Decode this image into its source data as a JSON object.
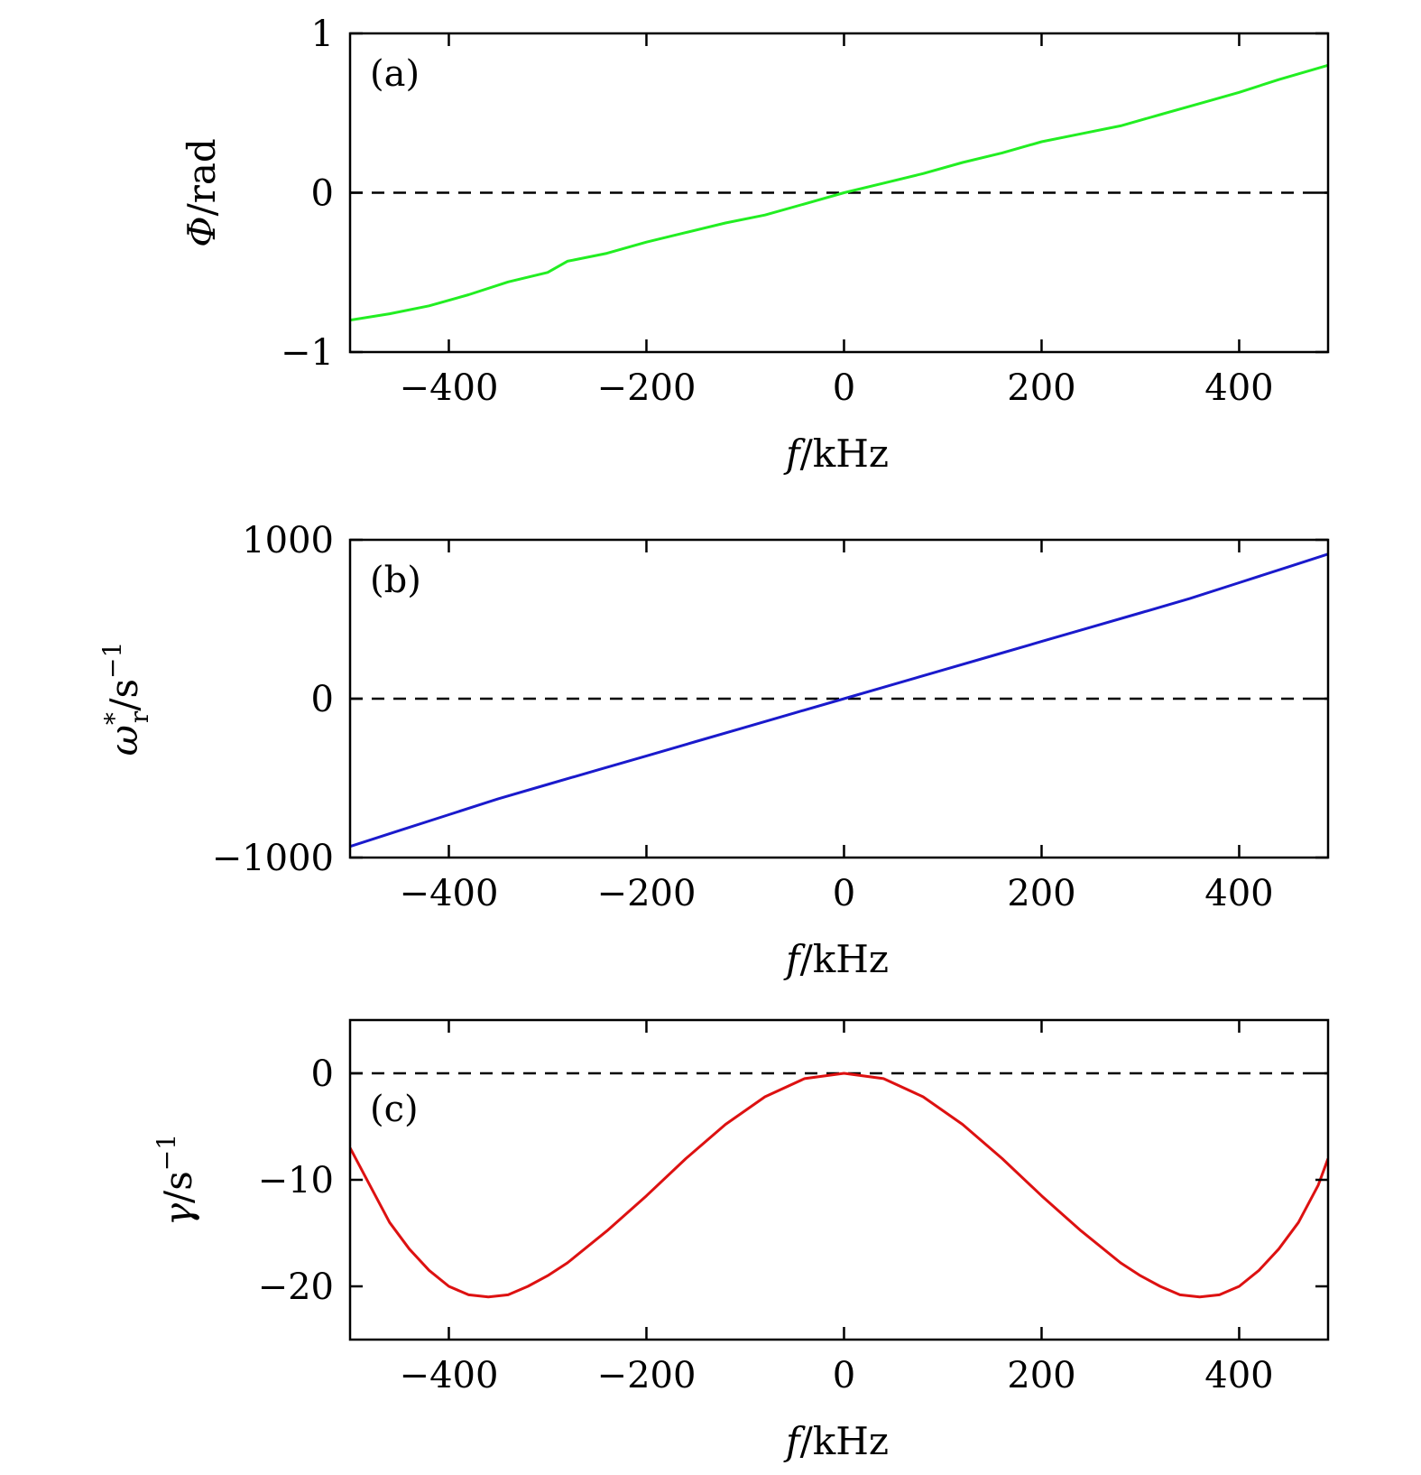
{
  "chart_data": [
    {
      "panel_label": "(a)",
      "type": "line",
      "xlabel": {
        "var": "f",
        "unit": "/kHz"
      },
      "ylabel": {
        "var": "Φ",
        "unit": "/rad"
      },
      "xlim": [
        -500,
        490
      ],
      "ylim": [
        -1,
        1
      ],
      "xticks": [
        -400,
        -200,
        0,
        200,
        400
      ],
      "xtick_labels": [
        "−400",
        "−200",
        "0",
        "200",
        "400"
      ],
      "yticks": [
        -1,
        0,
        1
      ],
      "ytick_labels": [
        "−1",
        "0",
        "1"
      ],
      "zero_line": 0,
      "series": [
        {
          "name": "Phi",
          "color": "#22ee22",
          "x": [
            -500,
            -460,
            -420,
            -380,
            -340,
            -300,
            -280,
            -240,
            -200,
            -160,
            -120,
            -80,
            -40,
            0,
            40,
            80,
            120,
            160,
            200,
            240,
            280,
            320,
            360,
            400,
            440,
            490
          ],
          "y": [
            -0.8,
            -0.76,
            -0.71,
            -0.64,
            -0.56,
            -0.5,
            -0.43,
            -0.38,
            -0.31,
            -0.25,
            -0.19,
            -0.14,
            -0.07,
            0.0,
            0.06,
            0.12,
            0.19,
            0.25,
            0.32,
            0.37,
            0.42,
            0.49,
            0.56,
            0.63,
            0.71,
            0.8
          ]
        }
      ]
    },
    {
      "panel_label": "(b)",
      "type": "line",
      "xlabel": {
        "var": "f",
        "unit": "/kHz"
      },
      "ylabel": {
        "var": "ω",
        "sub": "r",
        "sup": "*",
        "unit": "/s",
        "unit_sup": "−1"
      },
      "xlim": [
        -500,
        490
      ],
      "ylim": [
        -1000,
        1000
      ],
      "xticks": [
        -400,
        -200,
        0,
        200,
        400
      ],
      "xtick_labels": [
        "−400",
        "−200",
        "0",
        "200",
        "400"
      ],
      "yticks": [
        -1000,
        0,
        1000
      ],
      "ytick_labels": [
        "−1000",
        "0",
        "1000"
      ],
      "zero_line": 0,
      "series": [
        {
          "name": "omega_r",
          "color": "#1a1acc",
          "x": [
            -500,
            -450,
            -400,
            -350,
            -300,
            -250,
            -200,
            -150,
            -100,
            -50,
            0,
            50,
            100,
            150,
            200,
            250,
            300,
            350,
            400,
            450,
            490
          ],
          "y": [
            -930,
            -830,
            -730,
            -630,
            -540,
            -450,
            -360,
            -270,
            -180,
            -90,
            0,
            90,
            180,
            270,
            360,
            450,
            540,
            630,
            730,
            830,
            910
          ]
        }
      ]
    },
    {
      "panel_label": "(c)",
      "type": "line",
      "xlabel": {
        "var": "f",
        "unit": "/kHz"
      },
      "ylabel": {
        "var": "γ",
        "unit": "/s",
        "unit_sup": "−1"
      },
      "xlim": [
        -500,
        490
      ],
      "ylim": [
        -25,
        5
      ],
      "xticks": [
        -400,
        -200,
        0,
        200,
        400
      ],
      "xtick_labels": [
        "−400",
        "−200",
        "0",
        "200",
        "400"
      ],
      "yticks": [
        -20,
        -10,
        0
      ],
      "ytick_labels": [
        "−20",
        "−10",
        "0"
      ],
      "zero_line": 0,
      "series": [
        {
          "name": "gamma",
          "color": "#dd1111",
          "x": [
            -500,
            -480,
            -460,
            -440,
            -420,
            -400,
            -380,
            -360,
            -340,
            -320,
            -300,
            -280,
            -240,
            -200,
            -160,
            -120,
            -80,
            -40,
            0,
            40,
            80,
            120,
            160,
            200,
            240,
            280,
            300,
            320,
            340,
            360,
            380,
            400,
            420,
            440,
            460,
            480,
            490
          ],
          "y": [
            -7,
            -10.5,
            -14,
            -16.5,
            -18.5,
            -20,
            -20.8,
            -21.0,
            -20.8,
            -20.0,
            -19.0,
            -17.8,
            -14.8,
            -11.5,
            -8.0,
            -4.8,
            -2.2,
            -0.5,
            0.0,
            -0.5,
            -2.2,
            -4.8,
            -8.0,
            -11.5,
            -14.8,
            -17.8,
            -19.0,
            -20.0,
            -20.8,
            -21.0,
            -20.8,
            -20.0,
            -18.5,
            -16.5,
            -14,
            -10.5,
            -8
          ]
        }
      ]
    }
  ]
}
